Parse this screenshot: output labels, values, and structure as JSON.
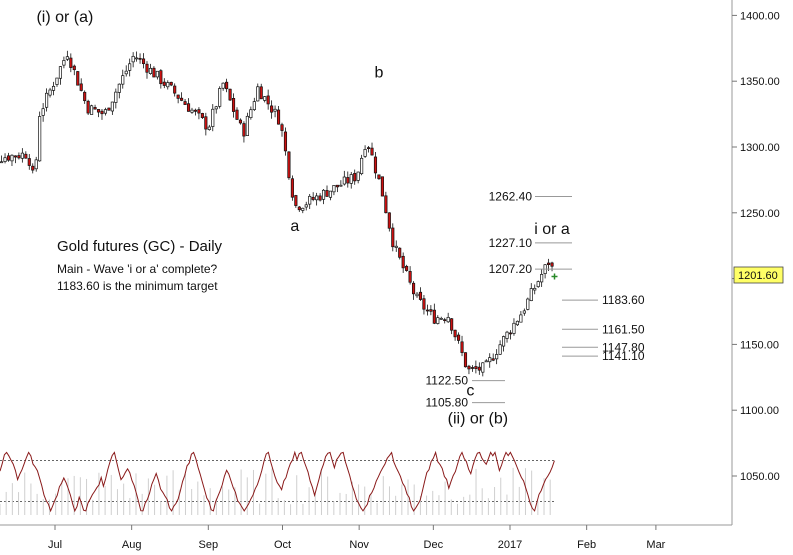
{
  "chart_data": {
    "type": "candlestick",
    "title": "Gold futures (GC) - Daily",
    "notes": [
      "Main - Wave 'i or a' complete?",
      "1183.60 is the minimum target"
    ],
    "x_ticks": [
      "Jul",
      "Aug",
      "Sep",
      "Oct",
      "Nov",
      "Dec",
      "2017",
      "Feb",
      "Mar"
    ],
    "y_ticks": [
      "1400.00",
      "1350.00",
      "1300.00",
      "1250.00",
      "1200.00",
      "1150.00",
      "1100.00",
      "1050.00"
    ],
    "ylim": [
      1005,
      1408
    ],
    "last_price": "1201.60",
    "up_color": "#ffffff",
    "down_color": "#cc1111",
    "wave_labels": [
      {
        "text": "(i) or (a)",
        "date": "2016-07-05",
        "price": 1395
      },
      {
        "text": "a",
        "date": "2016-10-06",
        "price": 1236
      },
      {
        "text": "b",
        "date": "2016-11-09",
        "price": 1353
      },
      {
        "text": "c",
        "date": "2016-12-16",
        "price": 1111
      },
      {
        "text": "(ii) or (b)",
        "date": "2016-12-19",
        "price": 1090
      },
      {
        "text": "i or a",
        "date": "2017-01-18",
        "price": 1234
      }
    ],
    "levels": [
      {
        "label": "1262.40",
        "value": 1262.4
      },
      {
        "label": "1227.10",
        "value": 1227.1
      },
      {
        "label": "1207.20",
        "value": 1207.2
      },
      {
        "label": "1183.60",
        "value": 1183.6
      },
      {
        "label": "1161.50",
        "value": 1161.5
      },
      {
        "label": "1147.80",
        "value": 1147.8
      },
      {
        "label": "1141.10",
        "value": 1141.1
      },
      {
        "label": "1122.50",
        "value": 1122.5
      },
      {
        "label": "1105.80",
        "value": 1105.8
      }
    ],
    "ohlc_keypoints": [
      {
        "date": "2016-06-01",
        "close": 1290
      },
      {
        "date": "2016-06-20",
        "close": 1295
      },
      {
        "date": "2016-06-23",
        "close": 1270
      },
      {
        "date": "2016-06-24",
        "close": 1322
      },
      {
        "date": "2016-07-06",
        "close": 1372
      },
      {
        "date": "2016-07-14",
        "close": 1330
      },
      {
        "date": "2016-07-21",
        "close": 1325
      },
      {
        "date": "2016-08-02",
        "close": 1370
      },
      {
        "date": "2016-08-19",
        "close": 1340
      },
      {
        "date": "2016-09-01",
        "close": 1315
      },
      {
        "date": "2016-09-07",
        "close": 1348
      },
      {
        "date": "2016-09-15",
        "close": 1310
      },
      {
        "date": "2016-09-21",
        "close": 1345
      },
      {
        "date": "2016-09-30",
        "close": 1320
      },
      {
        "date": "2016-10-06",
        "close": 1255
      },
      {
        "date": "2016-10-11",
        "close": 1258
      },
      {
        "date": "2016-10-18",
        "close": 1265
      },
      {
        "date": "2016-10-31",
        "close": 1278
      },
      {
        "date": "2016-11-04",
        "close": 1307
      },
      {
        "date": "2016-11-10",
        "close": 1268
      },
      {
        "date": "2016-11-15",
        "close": 1225
      },
      {
        "date": "2016-11-24",
        "close": 1185
      },
      {
        "date": "2016-12-01",
        "close": 1170
      },
      {
        "date": "2016-12-07",
        "close": 1172
      },
      {
        "date": "2016-12-15",
        "close": 1130
      },
      {
        "date": "2016-12-22",
        "close": 1132
      },
      {
        "date": "2016-12-28",
        "close": 1150
      },
      {
        "date": "2017-01-06",
        "close": 1175
      },
      {
        "date": "2017-01-12",
        "close": 1197
      },
      {
        "date": "2017-01-17",
        "close": 1214
      },
      {
        "date": "2017-01-19",
        "close": 1201.6
      }
    ],
    "oscillator": {
      "range": [
        0,
        100
      ],
      "upper_band": 80,
      "lower_band": 20
    },
    "grid": false
  }
}
